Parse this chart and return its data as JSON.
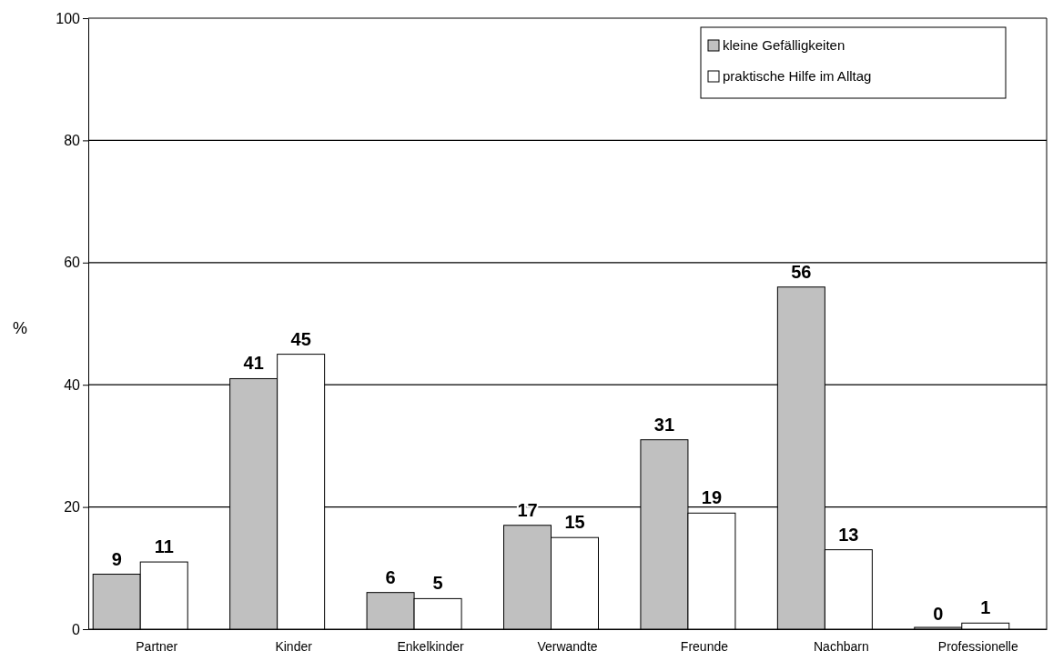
{
  "chart_data": {
    "type": "bar",
    "ylabel": "%",
    "categories": [
      "Partner",
      "Kinder",
      "Enkelkinder",
      "Verwandte",
      "Freunde",
      "Nachbarn",
      "Professionelle"
    ],
    "series": [
      {
        "name": "kleine Gefälligkeiten",
        "color": "#c0c0c0",
        "values": [
          9,
          41,
          6,
          17,
          31,
          56,
          0
        ]
      },
      {
        "name": "praktische Hilfe im Alltag",
        "color": "#ffffff",
        "values": [
          11,
          45,
          5,
          15,
          19,
          13,
          1
        ]
      }
    ],
    "ylim": [
      0,
      100
    ],
    "yticks": [
      0,
      20,
      40,
      60,
      80,
      100
    ],
    "grid": "y",
    "legend": "top right",
    "data_labels": true
  }
}
